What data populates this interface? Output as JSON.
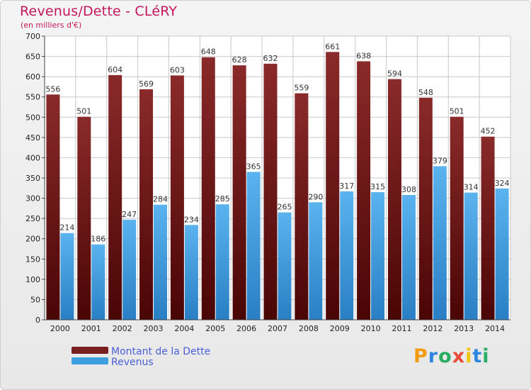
{
  "chart_data": {
    "type": "bar",
    "title": "Revenus/Dette - CLéRY",
    "subtitle": "(en milliers d'€)",
    "categories": [
      "2000",
      "2001",
      "2002",
      "2003",
      "2004",
      "2005",
      "2006",
      "2007",
      "2008",
      "2009",
      "2010",
      "2011",
      "2012",
      "2013",
      "2014"
    ],
    "series": [
      {
        "name": "Montant de la Dette",
        "color": "#7a1f1f",
        "values": [
          556,
          501,
          604,
          569,
          603,
          648,
          628,
          632,
          559,
          661,
          638,
          594,
          548,
          501,
          452
        ]
      },
      {
        "name": "Revenus",
        "color": "#3e9fe0",
        "values": [
          214,
          186,
          247,
          284,
          234,
          285,
          365,
          265,
          290,
          317,
          315,
          308,
          379,
          314,
          324
        ]
      }
    ],
    "ylim": [
      0,
      700
    ],
    "yticks": [
      0,
      50,
      100,
      150,
      200,
      250,
      300,
      350,
      400,
      450,
      500,
      550,
      600,
      650,
      700
    ],
    "grid": true,
    "legend": "bottom-left"
  },
  "brand": {
    "letters": [
      "P",
      "r",
      "o",
      "x",
      "i",
      "t",
      "i"
    ],
    "colors": [
      "#f39c12",
      "#2e86de",
      "#27ae60",
      "#e74c3c",
      "#f1c40f",
      "#2e86de",
      "#27ae60"
    ]
  }
}
